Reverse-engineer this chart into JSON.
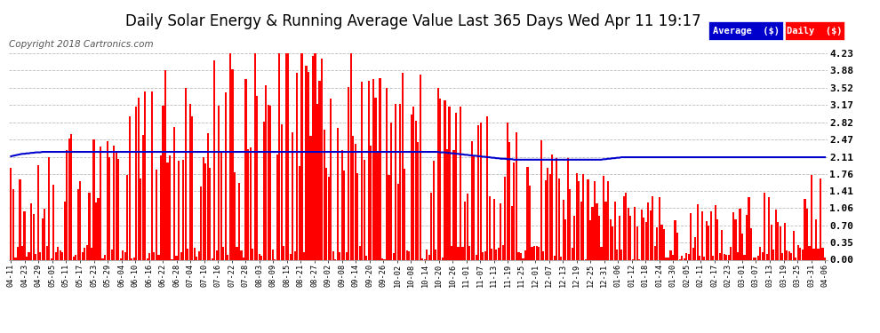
{
  "title": "Daily Solar Energy & Running Average Value Last 365 Days Wed Apr 11 19:17",
  "copyright": "Copyright 2018 Cartronics.com",
  "ylim": [
    0.0,
    4.23
  ],
  "yticks": [
    0.0,
    0.35,
    0.7,
    1.06,
    1.41,
    1.76,
    2.11,
    2.47,
    2.82,
    3.17,
    3.52,
    3.88,
    4.23
  ],
  "bar_color": "#FF0000",
  "avg_color": "#0000CC",
  "background_color": "#FFFFFF",
  "grid_color": "#BBBBBB",
  "legend_avg_bg": "#0000CC",
  "legend_daily_bg": "#FF0000",
  "legend_text_avg": "Average  ($)",
  "legend_text_daily": "Daily  ($)",
  "title_fontsize": 12,
  "copyright_fontsize": 7.5,
  "tick_fontsize": 8,
  "n_days": 365,
  "avg_values": [
    2.12,
    2.13,
    2.14,
    2.15,
    2.16,
    2.17,
    2.17,
    2.18,
    2.18,
    2.19,
    2.19,
    2.2,
    2.2,
    2.2,
    2.21,
    2.21,
    2.21,
    2.21,
    2.21,
    2.21,
    2.21,
    2.21,
    2.21,
    2.21,
    2.21,
    2.21,
    2.21,
    2.21,
    2.21,
    2.21,
    2.21,
    2.21,
    2.21,
    2.21,
    2.21,
    2.21,
    2.21,
    2.21,
    2.21,
    2.21,
    2.21,
    2.21,
    2.21,
    2.21,
    2.21,
    2.21,
    2.21,
    2.21,
    2.21,
    2.21,
    2.21,
    2.21,
    2.21,
    2.21,
    2.21,
    2.21,
    2.21,
    2.21,
    2.21,
    2.21,
    2.21,
    2.21,
    2.21,
    2.21,
    2.21,
    2.21,
    2.21,
    2.21,
    2.21,
    2.21,
    2.21,
    2.21,
    2.21,
    2.21,
    2.21,
    2.21,
    2.21,
    2.21,
    2.21,
    2.21,
    2.21,
    2.21,
    2.21,
    2.21,
    2.21,
    2.21,
    2.21,
    2.21,
    2.21,
    2.21,
    2.21,
    2.21,
    2.21,
    2.21,
    2.21,
    2.21,
    2.21,
    2.21,
    2.21,
    2.21,
    2.21,
    2.21,
    2.21,
    2.21,
    2.21,
    2.21,
    2.21,
    2.21,
    2.21,
    2.21,
    2.21,
    2.21,
    2.21,
    2.21,
    2.21,
    2.21,
    2.21,
    2.21,
    2.21,
    2.21,
    2.21,
    2.21,
    2.21,
    2.21,
    2.21,
    2.21,
    2.21,
    2.21,
    2.21,
    2.21,
    2.21,
    2.21,
    2.21,
    2.21,
    2.21,
    2.21,
    2.21,
    2.21,
    2.21,
    2.21,
    2.21,
    2.21,
    2.21,
    2.21,
    2.21,
    2.21,
    2.21,
    2.21,
    2.21,
    2.21,
    2.21,
    2.21,
    2.21,
    2.21,
    2.21,
    2.21,
    2.21,
    2.21,
    2.21,
    2.21,
    2.21,
    2.21,
    2.21,
    2.21,
    2.21,
    2.21,
    2.21,
    2.21,
    2.21,
    2.21,
    2.21,
    2.21,
    2.21,
    2.21,
    2.21,
    2.21,
    2.21,
    2.21,
    2.21,
    2.21,
    2.21,
    2.21,
    2.21,
    2.21,
    2.21,
    2.21,
    2.21,
    2.21,
    2.21,
    2.21,
    2.21,
    2.21,
    2.2,
    2.2,
    2.2,
    2.19,
    2.19,
    2.18,
    2.18,
    2.17,
    2.17,
    2.16,
    2.16,
    2.15,
    2.15,
    2.14,
    2.14,
    2.13,
    2.13,
    2.12,
    2.12,
    2.11,
    2.11,
    2.1,
    2.1,
    2.09,
    2.09,
    2.08,
    2.08,
    2.07,
    2.07,
    2.07,
    2.06,
    2.06,
    2.06,
    2.05,
    2.05,
    2.05,
    2.05,
    2.05,
    2.05,
    2.05,
    2.05,
    2.05,
    2.05,
    2.05,
    2.05,
    2.05,
    2.05,
    2.05,
    2.05,
    2.05,
    2.05,
    2.05,
    2.05,
    2.05,
    2.05,
    2.05,
    2.05,
    2.05,
    2.05,
    2.05,
    2.05,
    2.05,
    2.05,
    2.05,
    2.05,
    2.05,
    2.05,
    2.05,
    2.05,
    2.05,
    2.05,
    2.05,
    2.05,
    2.06,
    2.06,
    2.07,
    2.07,
    2.08,
    2.08,
    2.09,
    2.09,
    2.1,
    2.1,
    2.1,
    2.1,
    2.1,
    2.1,
    2.1,
    2.1,
    2.1,
    2.1,
    2.1,
    2.1,
    2.1,
    2.1,
    2.1,
    2.1,
    2.1,
    2.1,
    2.1,
    2.1,
    2.1,
    2.1,
    2.1,
    2.1,
    2.1,
    2.1,
    2.1,
    2.1,
    2.1,
    2.1,
    2.1,
    2.1,
    2.1,
    2.1,
    2.1,
    2.1,
    2.1,
    2.1,
    2.1,
    2.1,
    2.1,
    2.1,
    2.1,
    2.1,
    2.1,
    2.1,
    2.1,
    2.1,
    2.1,
    2.1,
    2.1,
    2.1,
    2.1,
    2.1,
    2.1,
    2.1,
    2.1,
    2.1,
    2.1,
    2.1,
    2.1,
    2.1,
    2.1,
    2.1,
    2.1,
    2.1,
    2.1,
    2.1,
    2.1,
    2.1,
    2.1,
    2.1,
    2.1,
    2.1,
    2.1,
    2.1,
    2.1,
    2.1,
    2.1,
    2.1,
    2.1,
    2.1,
    2.1,
    2.1,
    2.1,
    2.1,
    2.1,
    2.1,
    2.1,
    2.1,
    2.1,
    2.1
  ],
  "x_tick_labels": [
    "04-11",
    "04-23",
    "04-29",
    "05-05",
    "05-11",
    "05-17",
    "05-23",
    "05-29",
    "06-04",
    "06-10",
    "06-16",
    "06-22",
    "06-28",
    "07-04",
    "07-10",
    "07-16",
    "07-22",
    "07-28",
    "08-03",
    "08-09",
    "08-15",
    "08-21",
    "08-27",
    "09-02",
    "09-08",
    "09-14",
    "09-20",
    "09-26",
    "10-02",
    "10-08",
    "10-14",
    "10-20",
    "10-26",
    "11-01",
    "11-07",
    "11-13",
    "11-19",
    "11-25",
    "12-01",
    "12-07",
    "12-13",
    "12-19",
    "12-25",
    "12-31",
    "01-06",
    "01-12",
    "01-18",
    "01-24",
    "01-30",
    "02-05",
    "02-11",
    "02-17",
    "02-23",
    "03-01",
    "03-07",
    "03-13",
    "03-19",
    "03-25",
    "03-31",
    "04-06"
  ]
}
